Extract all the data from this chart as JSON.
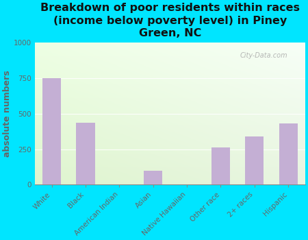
{
  "categories": [
    "White",
    "Black",
    "American Indian",
    "Asian",
    "Native Hawaiian",
    "Other race",
    "2+ races",
    "Hispanic"
  ],
  "values": [
    750,
    435,
    0,
    100,
    0,
    260,
    340,
    430
  ],
  "bar_color": "#c4afd4",
  "title": "Breakdown of poor residents within races\n(income below poverty level) in Piney\nGreen, NC",
  "ylabel": "absolute numbers",
  "ylim": [
    0,
    1000
  ],
  "yticks": [
    0,
    250,
    500,
    750,
    1000
  ],
  "background_outer": "#00e5ff",
  "background_plot_topleft": "#e8f5e0",
  "background_plot_topright": "#f5faff",
  "background_plot_bottom": "#ffffff",
  "title_fontsize": 11.5,
  "ylabel_fontsize": 9,
  "tick_label_color": "#666666",
  "title_color": "#111111",
  "watermark": "City-Data.com"
}
